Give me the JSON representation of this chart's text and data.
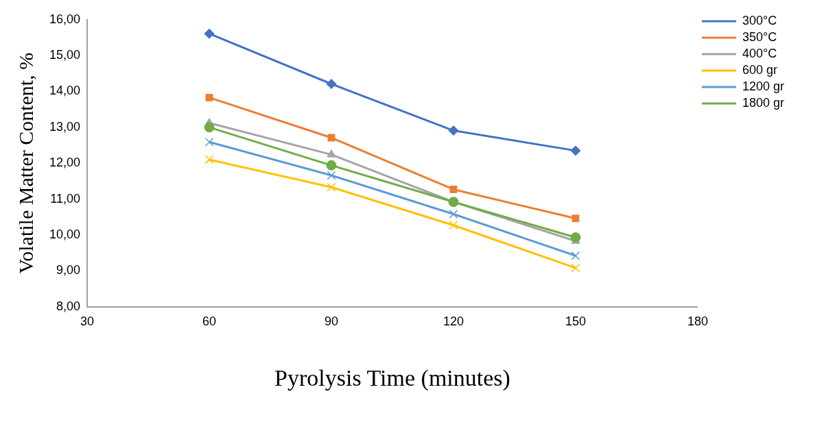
{
  "chart_data": {
    "type": "line",
    "xlabel": "Pyrolysis Time (minutes)",
    "ylabel": "Volatile Matter Content, %",
    "xlim": [
      30,
      180
    ],
    "xticks": [
      30,
      60,
      90,
      120,
      150,
      180
    ],
    "ylim": [
      8,
      16
    ],
    "yticks": [
      {
        "value": 8,
        "label": "8,00"
      },
      {
        "value": 9,
        "label": "9,00"
      },
      {
        "value": 10,
        "label": "10,00"
      },
      {
        "value": 11,
        "label": "11,00"
      },
      {
        "value": 12,
        "label": "12,00"
      },
      {
        "value": 13,
        "label": "13,00"
      },
      {
        "value": 14,
        "label": "14,00"
      },
      {
        "value": 15,
        "label": "15,00"
      },
      {
        "value": 16,
        "label": "16,00"
      }
    ],
    "grid": false,
    "legend": "top right",
    "line_style": "solid",
    "x": [
      60,
      90,
      120,
      150
    ],
    "series": [
      {
        "name": "300°C",
        "color": "#4472c4",
        "marker": "diamond",
        "values": [
          15.61,
          14.21,
          12.91,
          12.35
        ]
      },
      {
        "name": "350°C",
        "color": "#ed7d31",
        "marker": "square",
        "values": [
          13.83,
          12.71,
          11.27,
          10.46
        ]
      },
      {
        "name": "400°C",
        "color": "#a5a5a5",
        "marker": "triangle",
        "values": [
          13.12,
          12.24,
          10.92,
          9.83
        ]
      },
      {
        "name": "600 gr",
        "color": "#ffc000",
        "marker": "cross",
        "values": [
          12.1,
          11.33,
          10.27,
          9.08
        ]
      },
      {
        "name": "1200 gr",
        "color": "#5b9bd5",
        "marker": "cross",
        "values": [
          12.59,
          11.66,
          10.58,
          9.42
        ]
      },
      {
        "name": "1800 gr",
        "color": "#70ad47",
        "marker": "circle",
        "values": [
          13.0,
          11.94,
          10.92,
          9.93
        ]
      }
    ]
  }
}
